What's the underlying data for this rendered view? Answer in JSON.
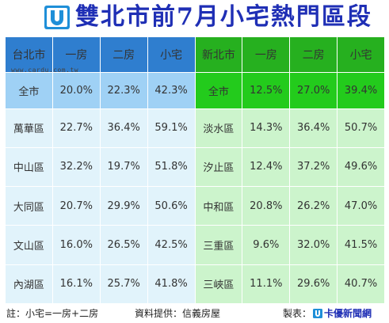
{
  "title": "雙北市前7月小宅熱門區段",
  "watermark": "www.cardu.com.tw",
  "colors": {
    "title": "#1f2fb5",
    "taipei_header": "#2f7ecf",
    "newtaipei_header": "#26b01f",
    "taipei_total": "#9fd1f5",
    "newtaipei_total": "#23cb1c",
    "taipei_body": "#e1f3fb",
    "newtaipei_body": "#ccf4cc"
  },
  "table": {
    "taipei_headers": [
      "台北市",
      "一房",
      "二房",
      "小宅"
    ],
    "newtaipei_headers": [
      "新北市",
      "一房",
      "二房",
      "小宅"
    ],
    "rows": [
      {
        "tp": [
          "全市",
          "20.0%",
          "22.3%",
          "42.3%"
        ],
        "np": [
          "全市",
          "12.5%",
          "27.0%",
          "39.4%"
        ]
      },
      {
        "tp": [
          "萬華區",
          "22.7%",
          "36.4%",
          "59.1%"
        ],
        "np": [
          "淡水區",
          "14.3%",
          "36.4%",
          "50.7%"
        ]
      },
      {
        "tp": [
          "中山區",
          "32.2%",
          "19.7%",
          "51.8%"
        ],
        "np": [
          "汐止區",
          "12.4%",
          "37.2%",
          "49.6%"
        ]
      },
      {
        "tp": [
          "大同區",
          "20.7%",
          "29.9%",
          "50.6%"
        ],
        "np": [
          "中和區",
          "20.8%",
          "26.2%",
          "47.0%"
        ]
      },
      {
        "tp": [
          "文山區",
          "16.0%",
          "26.5%",
          "42.5%"
        ],
        "np": [
          "三重區",
          "9.6%",
          "32.0%",
          "41.5%"
        ]
      },
      {
        "tp": [
          "內湖區",
          "16.1%",
          "25.7%",
          "41.8%"
        ],
        "np": [
          "三峽區",
          "11.1%",
          "29.6%",
          "40.7%"
        ]
      }
    ]
  },
  "footer": {
    "note": "註：小宅=一房+二房",
    "source": "資料提供：信義房屋",
    "made_by": "製表：",
    "brand": "卡優新聞網"
  },
  "icons": {
    "title_logo": "cardu-logo-icon",
    "footer_logo": "cardu-logo-icon"
  }
}
